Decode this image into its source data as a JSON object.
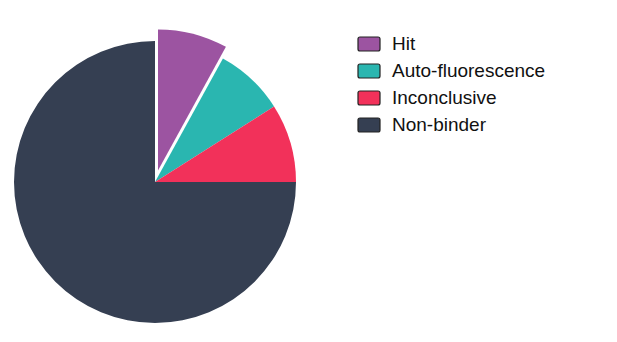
{
  "chart_data": {
    "type": "pie",
    "categories": [
      "Hit",
      "Auto-fluorescence",
      "Inconclusive",
      "Non-binder"
    ],
    "values": [
      8,
      8,
      9,
      75
    ],
    "colors": [
      "#9c54a1",
      "#2ab6b0",
      "#f2315a",
      "#353f52"
    ],
    "legend": "upper right"
  }
}
